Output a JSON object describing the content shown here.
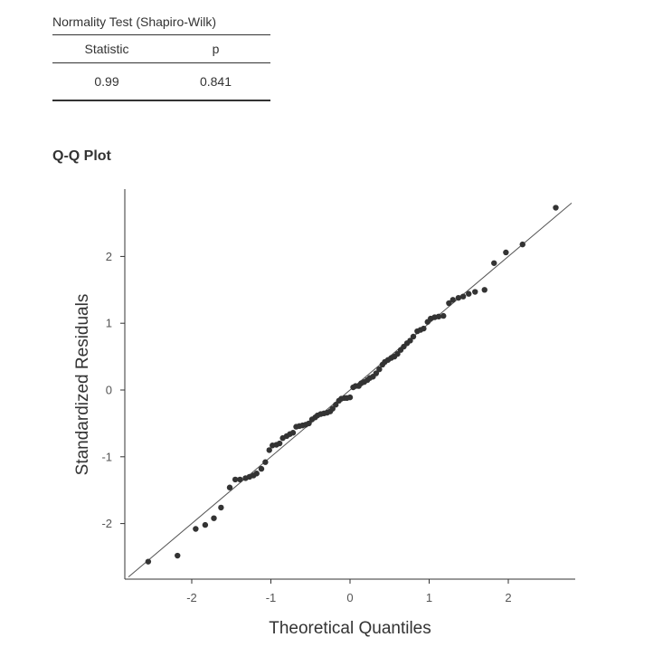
{
  "normality_table": {
    "title": "Normality Test (Shapiro-Wilk)",
    "columns": [
      "Statistic",
      "p"
    ],
    "row": {
      "statistic": "0.99",
      "p": "0.841"
    }
  },
  "plot_heading": "Q-Q Plot",
  "chart_data": {
    "type": "scatter",
    "title": "",
    "xlabel": "Theoretical Quantiles",
    "ylabel": "Standardized Residuals",
    "xlim": [
      -2.8,
      2.8
    ],
    "ylim": [
      -2.8,
      3.0
    ],
    "xticks": [
      -2,
      -1,
      0,
      1,
      2
    ],
    "yticks": [
      -2,
      -1,
      0,
      1,
      2
    ],
    "reference_line": {
      "type": "identity",
      "color": "#555555"
    },
    "point_color": "#333333",
    "grid": false,
    "points": [
      [
        -2.55,
        -2.57
      ],
      [
        -2.18,
        -2.48
      ],
      [
        -1.95,
        -2.08
      ],
      [
        -1.83,
        -2.02
      ],
      [
        -1.72,
        -1.92
      ],
      [
        -1.63,
        -1.76
      ],
      [
        -1.52,
        -1.46
      ],
      [
        -1.45,
        -1.34
      ],
      [
        -1.39,
        -1.34
      ],
      [
        -1.32,
        -1.32
      ],
      [
        -1.27,
        -1.3
      ],
      [
        -1.22,
        -1.28
      ],
      [
        -1.18,
        -1.25
      ],
      [
        -1.12,
        -1.18
      ],
      [
        -1.07,
        -1.08
      ],
      [
        -1.02,
        -0.9
      ],
      [
        -0.98,
        -0.83
      ],
      [
        -0.93,
        -0.82
      ],
      [
        -0.89,
        -0.8
      ],
      [
        -0.85,
        -0.72
      ],
      [
        -0.8,
        -0.69
      ],
      [
        -0.76,
        -0.66
      ],
      [
        -0.72,
        -0.64
      ],
      [
        -0.68,
        -0.55
      ],
      [
        -0.64,
        -0.54
      ],
      [
        -0.6,
        -0.53
      ],
      [
        -0.56,
        -0.52
      ],
      [
        -0.52,
        -0.5
      ],
      [
        -0.48,
        -0.44
      ],
      [
        -0.44,
        -0.41
      ],
      [
        -0.41,
        -0.38
      ],
      [
        -0.37,
        -0.36
      ],
      [
        -0.33,
        -0.35
      ],
      [
        -0.29,
        -0.34
      ],
      [
        -0.25,
        -0.32
      ],
      [
        -0.22,
        -0.28
      ],
      [
        -0.18,
        -0.22
      ],
      [
        -0.14,
        -0.16
      ],
      [
        -0.11,
        -0.13
      ],
      [
        -0.07,
        -0.12
      ],
      [
        -0.04,
        -0.12
      ],
      [
        0.0,
        -0.11
      ],
      [
        0.04,
        0.04
      ],
      [
        0.07,
        0.06
      ],
      [
        0.11,
        0.06
      ],
      [
        0.14,
        0.1
      ],
      [
        0.18,
        0.12
      ],
      [
        0.22,
        0.15
      ],
      [
        0.25,
        0.18
      ],
      [
        0.29,
        0.2
      ],
      [
        0.33,
        0.25
      ],
      [
        0.37,
        0.31
      ],
      [
        0.41,
        0.38
      ],
      [
        0.44,
        0.42
      ],
      [
        0.48,
        0.45
      ],
      [
        0.52,
        0.48
      ],
      [
        0.56,
        0.5
      ],
      [
        0.6,
        0.54
      ],
      [
        0.64,
        0.6
      ],
      [
        0.68,
        0.65
      ],
      [
        0.72,
        0.7
      ],
      [
        0.76,
        0.74
      ],
      [
        0.8,
        0.8
      ],
      [
        0.85,
        0.88
      ],
      [
        0.89,
        0.9
      ],
      [
        0.93,
        0.92
      ],
      [
        0.98,
        1.02
      ],
      [
        1.02,
        1.07
      ],
      [
        1.07,
        1.09
      ],
      [
        1.12,
        1.1
      ],
      [
        1.18,
        1.11
      ],
      [
        1.25,
        1.3
      ],
      [
        1.3,
        1.35
      ],
      [
        1.37,
        1.38
      ],
      [
        1.43,
        1.4
      ],
      [
        1.5,
        1.44
      ],
      [
        1.58,
        1.47
      ],
      [
        1.7,
        1.5
      ],
      [
        1.82,
        1.9
      ],
      [
        1.97,
        2.06
      ],
      [
        2.18,
        2.18
      ],
      [
        2.6,
        2.73
      ]
    ]
  }
}
